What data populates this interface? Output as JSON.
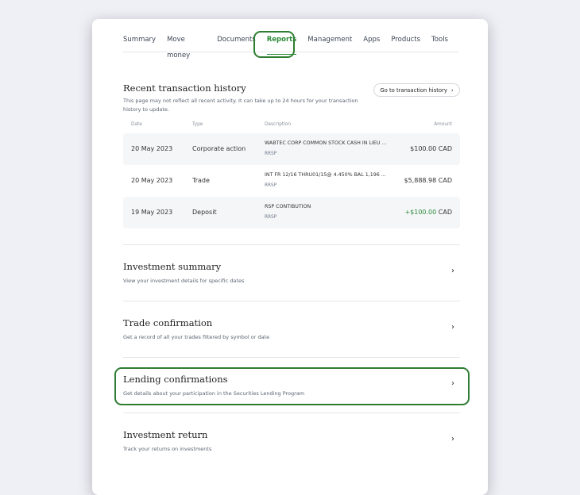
{
  "nav": {
    "tabs": [
      "Summary",
      "Move money",
      "Documents",
      "Reports",
      "Management",
      "Apps",
      "Products",
      "Tools"
    ],
    "active": "Reports"
  },
  "recent": {
    "title": "Recent transaction history",
    "subtitle": "This page may not reflect all recent activity. It can take up to 24 hours for your transaction history to update.",
    "button": "Go to transaction history",
    "headers": {
      "date": "Date",
      "type": "Type",
      "description": "Description",
      "amount": "Amount"
    },
    "rows": [
      {
        "date": "20 May 2023",
        "type": "Corporate action",
        "description": "WABTEC CORP COMMON STOCK CASH IN LIEU ...",
        "account": "RRSP",
        "amount": "$100.00",
        "currency": "CAD"
      },
      {
        "date": "20 May 2023",
        "type": "Trade",
        "description": "INT FR 12/16 THRU01/15@ 4.450% BAL 1,196 ...",
        "account": "RRSP",
        "amount": "$5,888.98",
        "currency": "CAD"
      },
      {
        "date": "19 May 2023",
        "type": "Deposit",
        "description": "RSP CONTIBUTION",
        "account": "RRSP",
        "amount": "+$100.00",
        "currency": "CAD"
      }
    ]
  },
  "sections": [
    {
      "title": "Investment summary",
      "subtitle": "View your investment details for specific dates"
    },
    {
      "title": "Trade confirmation",
      "subtitle": "Get a record of all your trades filtered by symbol or date"
    },
    {
      "title": "Lending confirmations",
      "subtitle": "Get details about your participation in the Securities Lending Program"
    },
    {
      "title": "Investment return",
      "subtitle": "Track your returns on investments"
    }
  ],
  "colors": {
    "accent": "#2e8b3a",
    "highlight": "#2e7d32"
  }
}
